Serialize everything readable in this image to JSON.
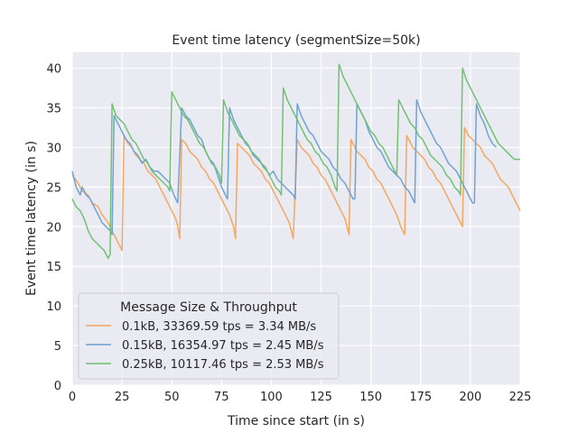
{
  "chart_data": {
    "type": "line",
    "title": "Event time latency (segmentSize=50k)",
    "xlabel": "Time since start (in s)",
    "ylabel": "Event time latency (in s)",
    "xlim": [
      0,
      225
    ],
    "ylim": [
      0,
      42
    ],
    "xticks": [
      "0",
      "25",
      "50",
      "75",
      "100",
      "125",
      "150",
      "175",
      "200",
      "225"
    ],
    "yticks": [
      "0",
      "5",
      "10",
      "15",
      "20",
      "25",
      "30",
      "35",
      "40"
    ],
    "grid": true,
    "legend": {
      "title": "Message Size & Throughput",
      "position": "lower-left"
    },
    "series": [
      {
        "name": "0.1kB, 33369.59 tps = 3.34 MB/s",
        "color": "#f5a35a",
        "x": [
          0,
          3,
          5,
          8,
          10,
          13,
          15,
          18,
          20,
          22,
          24,
          25,
          26,
          28,
          30,
          32,
          34,
          36,
          38,
          40,
          42,
          44,
          46,
          48,
          50,
          52,
          53,
          54,
          55,
          57,
          59,
          61,
          63,
          65,
          67,
          69,
          71,
          73,
          75,
          77,
          79,
          81,
          82,
          83,
          85,
          87,
          89,
          91,
          93,
          95,
          97,
          99,
          101,
          103,
          105,
          107,
          109,
          110,
          111,
          113,
          115,
          117,
          119,
          121,
          123,
          125,
          127,
          129,
          131,
          133,
          135,
          137,
          139,
          140,
          141,
          143,
          145,
          147,
          149,
          151,
          153,
          155,
          157,
          159,
          161,
          163,
          165,
          167,
          168,
          169,
          171,
          173,
          175,
          177,
          179,
          181,
          183,
          185,
          187,
          189,
          191,
          193,
          195,
          196,
          197,
          199,
          201,
          203,
          205,
          207,
          209,
          211,
          213,
          215,
          217,
          219,
          221,
          223,
          225
        ],
        "y": [
          26.5,
          25.5,
          24.5,
          24.0,
          23.0,
          22.5,
          21.5,
          20.5,
          19.5,
          18.5,
          17.5,
          17.0,
          31.5,
          30.5,
          30.0,
          29.0,
          28.5,
          28.0,
          27.0,
          26.5,
          26.0,
          25.0,
          24.0,
          23.0,
          22.0,
          21.0,
          20.0,
          18.5,
          31.0,
          30.5,
          29.5,
          29.0,
          28.5,
          27.5,
          27.0,
          26.0,
          25.5,
          24.5,
          23.5,
          22.5,
          21.5,
          20.0,
          18.5,
          30.5,
          30.0,
          29.5,
          29.0,
          28.0,
          27.5,
          27.0,
          26.0,
          25.5,
          24.5,
          23.5,
          22.5,
          21.5,
          20.5,
          19.5,
          18.5,
          31.0,
          30.0,
          29.5,
          29.0,
          28.0,
          27.5,
          26.5,
          26.0,
          25.0,
          24.0,
          23.0,
          22.0,
          21.0,
          19.0,
          31.0,
          30.5,
          29.5,
          29.0,
          28.5,
          27.5,
          27.0,
          26.0,
          25.5,
          24.5,
          23.5,
          22.5,
          21.5,
          20.0,
          19.0,
          31.5,
          31.0,
          30.0,
          29.5,
          29.0,
          28.5,
          27.5,
          27.0,
          26.0,
          25.5,
          24.5,
          23.5,
          22.5,
          21.5,
          20.5,
          20.0,
          32.5,
          31.5,
          31.0,
          30.5,
          30.0,
          29.0,
          28.5,
          28.0,
          27.0,
          26.0,
          25.5,
          25.0,
          24.0,
          23.0,
          22.0
        ]
      },
      {
        "name": "0.15kB, 16354.97 tps = 2.45 MB/s",
        "color": "#6a9fcf",
        "x": [
          0,
          2,
          4,
          5,
          7,
          9,
          11,
          13,
          15,
          17,
          19,
          20,
          21,
          23,
          25,
          27,
          29,
          31,
          33,
          35,
          37,
          39,
          41,
          43,
          45,
          47,
          49,
          51,
          53,
          55,
          57,
          59,
          61,
          63,
          65,
          67,
          69,
          71,
          73,
          75,
          77,
          78,
          79,
          81,
          83,
          85,
          87,
          89,
          91,
          93,
          95,
          97,
          99,
          101,
          103,
          105,
          107,
          109,
          111,
          112,
          113,
          115,
          117,
          119,
          121,
          123,
          125,
          127,
          129,
          131,
          133,
          135,
          137,
          139,
          141,
          142,
          143,
          145,
          147,
          149,
          151,
          153,
          155,
          157,
          159,
          161,
          163,
          165,
          167,
          169,
          171,
          172,
          173,
          175,
          177,
          179,
          181,
          183,
          185,
          187,
          189,
          191,
          193,
          195,
          197,
          199,
          201,
          202,
          203,
          205,
          207,
          209,
          211,
          213
        ],
        "y": [
          27.0,
          25.0,
          24.0,
          25.0,
          24.0,
          23.5,
          22.5,
          21.5,
          20.5,
          20.0,
          19.5,
          19.0,
          34.0,
          33.0,
          32.0,
          31.0,
          30.5,
          29.5,
          29.0,
          28.0,
          28.5,
          27.5,
          27.0,
          27.0,
          26.5,
          26.0,
          25.5,
          24.0,
          23.0,
          35.0,
          34.0,
          33.5,
          32.5,
          31.5,
          31.0,
          29.5,
          28.5,
          28.0,
          26.5,
          25.0,
          24.0,
          23.5,
          35.0,
          33.5,
          32.5,
          31.5,
          30.5,
          30.0,
          29.0,
          28.5,
          28.0,
          27.5,
          26.5,
          27.0,
          26.0,
          25.5,
          25.0,
          24.5,
          24.0,
          23.5,
          35.5,
          34.0,
          33.0,
          32.0,
          31.5,
          30.5,
          29.5,
          29.0,
          28.5,
          27.5,
          27.0,
          26.0,
          25.5,
          24.5,
          23.5,
          23.5,
          35.5,
          34.5,
          33.5,
          32.0,
          31.0,
          30.0,
          29.5,
          28.5,
          27.5,
          27.0,
          26.5,
          26.0,
          25.0,
          24.5,
          23.5,
          23.0,
          36.0,
          34.5,
          33.5,
          32.5,
          31.5,
          30.5,
          30.0,
          29.0,
          28.0,
          27.5,
          27.0,
          26.0,
          25.0,
          24.0,
          23.0,
          23.0,
          35.5,
          34.0,
          33.0,
          31.5,
          30.5,
          30.0
        ]
      },
      {
        "name": "0.25kB, 10117.46 tps = 2.53 MB/s",
        "color": "#6cbf6c",
        "x": [
          0,
          2,
          4,
          6,
          8,
          10,
          12,
          14,
          16,
          17,
          18,
          19,
          20,
          22,
          24,
          26,
          28,
          30,
          32,
          34,
          36,
          38,
          40,
          42,
          44,
          46,
          48,
          49,
          50,
          52,
          54,
          56,
          58,
          60,
          62,
          64,
          66,
          68,
          70,
          72,
          74,
          75,
          76,
          78,
          80,
          82,
          84,
          86,
          88,
          90,
          92,
          94,
          96,
          98,
          100,
          102,
          104,
          105,
          106,
          108,
          110,
          112,
          114,
          116,
          118,
          120,
          122,
          124,
          126,
          128,
          130,
          132,
          133,
          134,
          136,
          138,
          140,
          142,
          144,
          146,
          148,
          150,
          152,
          154,
          156,
          158,
          160,
          162,
          163,
          164,
          166,
          168,
          170,
          172,
          174,
          176,
          178,
          180,
          182,
          184,
          186,
          188,
          190,
          192,
          194,
          195,
          196,
          198,
          200,
          202,
          204,
          206,
          208,
          210,
          212,
          214,
          216,
          218,
          220,
          222,
          224,
          225
        ],
        "y": [
          23.5,
          22.5,
          22.0,
          21.0,
          19.5,
          18.5,
          18.0,
          17.5,
          17.0,
          16.5,
          16.0,
          16.5,
          35.5,
          34.0,
          33.5,
          33.0,
          32.0,
          31.0,
          30.5,
          29.5,
          28.5,
          28.0,
          27.0,
          26.5,
          26.0,
          25.5,
          25.0,
          24.5,
          37.0,
          36.0,
          35.0,
          34.0,
          33.5,
          32.5,
          31.5,
          30.5,
          30.0,
          29.0,
          28.0,
          27.5,
          26.5,
          25.5,
          36.0,
          34.5,
          33.5,
          32.5,
          31.5,
          31.0,
          30.5,
          29.5,
          29.0,
          28.5,
          27.5,
          27.0,
          26.0,
          25.0,
          24.5,
          24.0,
          37.5,
          36.0,
          35.0,
          34.0,
          33.0,
          32.0,
          31.0,
          30.5,
          29.5,
          29.0,
          28.0,
          27.5,
          26.5,
          25.0,
          24.5,
          40.5,
          39.0,
          38.0,
          37.0,
          36.0,
          35.0,
          34.0,
          33.0,
          32.0,
          31.5,
          30.5,
          30.0,
          29.0,
          28.0,
          27.0,
          26.5,
          36.0,
          35.0,
          34.0,
          33.0,
          32.5,
          31.5,
          31.0,
          30.0,
          29.0,
          28.5,
          28.0,
          27.5,
          26.5,
          26.0,
          25.0,
          24.5,
          24.0,
          40.0,
          38.5,
          37.5,
          36.5,
          35.5,
          34.5,
          33.5,
          32.5,
          31.5,
          30.5,
          30.0,
          29.5,
          29.0,
          28.5,
          28.5,
          28.5
        ]
      }
    ]
  }
}
